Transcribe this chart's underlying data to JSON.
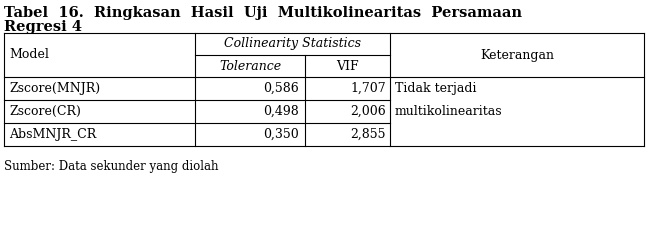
{
  "title_line1": "Tabel  16.  Ringkasan  Hasil  Uji  Multikolinearitas  Persamaan",
  "title_line2": "Regresi 4",
  "col_header_1": "Collinearity Statistics",
  "col_header_2a": "Tolerance",
  "col_header_2b": "VIF",
  "col_header_3": "Keterangan",
  "col_model": "Model",
  "rows": [
    [
      "Zscore(MNJR)",
      "0,586",
      "1,707"
    ],
    [
      "Zscore(CR)",
      "0,498",
      "2,006"
    ],
    [
      "AbsMNJR_CR",
      "0,350",
      "2,855"
    ]
  ],
  "keterangan_line1": "Tidak terjadi",
  "keterangan_line2": "multikolinearitas",
  "source": "Sumber: Data sekunder yang diolah",
  "bg_color": "#ffffff",
  "text_color": "#000000",
  "font_size": 9.0,
  "title_font_size": 10.5
}
